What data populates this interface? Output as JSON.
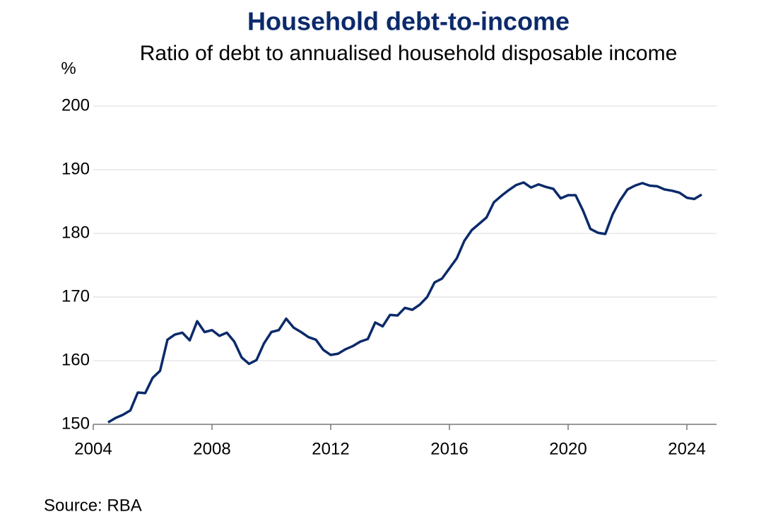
{
  "chart_data": {
    "type": "line",
    "title": "Household debt-to-income",
    "subtitle": "Ratio of debt to annualised household disposable income",
    "y_label": "%",
    "source": "Source: RBA",
    "x": [
      2004.5,
      2004.75,
      2005,
      2005.25,
      2005.5,
      2005.75,
      2006,
      2006.25,
      2006.5,
      2006.75,
      2007,
      2007.25,
      2007.5,
      2007.75,
      2008,
      2008.25,
      2008.5,
      2008.75,
      2009,
      2009.25,
      2009.5,
      2009.75,
      2010,
      2010.25,
      2010.5,
      2010.75,
      2011,
      2011.25,
      2011.5,
      2011.75,
      2012,
      2012.25,
      2012.5,
      2012.75,
      2013,
      2013.25,
      2013.5,
      2013.75,
      2014,
      2014.25,
      2014.5,
      2014.75,
      2015,
      2015.25,
      2015.5,
      2015.75,
      2016,
      2016.25,
      2016.5,
      2016.75,
      2017,
      2017.25,
      2017.5,
      2017.75,
      2018,
      2018.25,
      2018.5,
      2018.75,
      2019,
      2019.25,
      2019.5,
      2019.75,
      2020,
      2020.25,
      2020.5,
      2020.75,
      2021,
      2021.25,
      2021.5,
      2021.75,
      2022,
      2022.25,
      2022.5,
      2022.75,
      2023,
      2023.25,
      2023.5,
      2023.75,
      2024,
      2024.25,
      2024.5
    ],
    "series": [
      {
        "name": "Household debt-to-income",
        "color": "#0b2a6b",
        "values": [
          150.3,
          151.0,
          151.5,
          152.2,
          155.0,
          154.9,
          157.3,
          158.4,
          163.3,
          164.1,
          164.4,
          163.2,
          166.2,
          164.5,
          164.8,
          163.9,
          164.4,
          163.0,
          160.5,
          159.5,
          160.1,
          162.7,
          164.5,
          164.8,
          166.6,
          165.2,
          164.5,
          163.7,
          163.3,
          161.7,
          160.9,
          161.1,
          161.8,
          162.3,
          163.0,
          163.4,
          166.0,
          165.4,
          167.2,
          167.1,
          168.3,
          168.0,
          168.8,
          170.0,
          172.3,
          172.9,
          174.5,
          176.1,
          178.8,
          180.5,
          181.5,
          182.5,
          184.9,
          185.9,
          186.8,
          187.6,
          188.0,
          187.2,
          187.7,
          187.3,
          187.0,
          185.5,
          186.0,
          186.0,
          183.6,
          180.7,
          180.1,
          179.9,
          183.0,
          185.2,
          186.9,
          187.5,
          187.9,
          187.5,
          187.4,
          186.9,
          186.7,
          186.4,
          185.6,
          185.4,
          186.1
        ]
      }
    ],
    "xlim": [
      2004,
      2025
    ],
    "xticks": [
      2004,
      2008,
      2012,
      2016,
      2020,
      2024
    ],
    "ylim": [
      150,
      200
    ],
    "yticks": [
      150,
      160,
      170,
      180,
      190,
      200
    ],
    "grid": true
  }
}
